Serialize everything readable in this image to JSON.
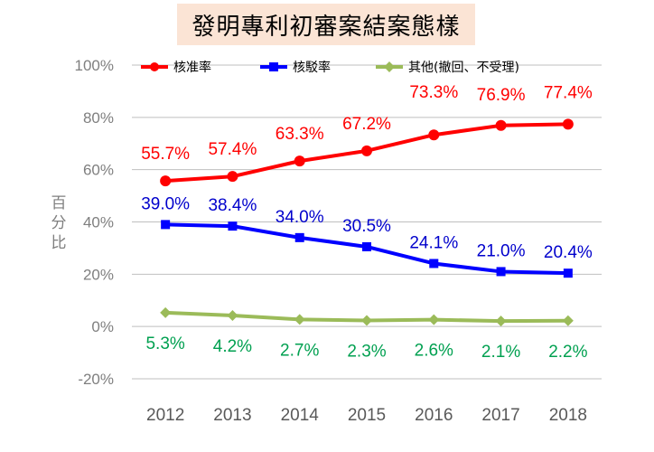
{
  "chart_data": {
    "type": "line",
    "title": "發明專利初審案結案態樣",
    "ylabel": "百\n分\n比",
    "xlabel": "",
    "categories": [
      "2012",
      "2013",
      "2014",
      "2015",
      "2016",
      "2017",
      "2018"
    ],
    "ylim": [
      -20,
      100
    ],
    "yticks": [
      -20,
      0,
      20,
      40,
      60,
      80,
      100
    ],
    "ytick_labels": [
      "-20%",
      "0%",
      "20%",
      "40%",
      "60%",
      "80%",
      "100%"
    ],
    "grid": true,
    "legend_position": "top",
    "series": [
      {
        "name": "核准率",
        "color": "#ff0000",
        "label_color": "#ff0000",
        "marker": "circle",
        "values": [
          55.7,
          57.4,
          63.3,
          67.2,
          73.3,
          76.9,
          77.4
        ],
        "labels": [
          "55.7%",
          "57.4%",
          "63.3%",
          "67.2%",
          "73.3%",
          "76.9%",
          "77.4%"
        ]
      },
      {
        "name": "核駁率",
        "color": "#0000ff",
        "label_color": "#0000cc",
        "marker": "square",
        "values": [
          39.0,
          38.4,
          34.0,
          30.5,
          24.1,
          21.0,
          20.4
        ],
        "labels": [
          "39.0%",
          "38.4%",
          "34.0%",
          "30.5%",
          "24.1%",
          "21.0%",
          "20.4%"
        ]
      },
      {
        "name": "其他(撤回、不受理)",
        "color": "#9bbb59",
        "label_color": "#00a050",
        "marker": "diamond",
        "values": [
          5.3,
          4.2,
          2.7,
          2.3,
          2.6,
          2.1,
          2.2
        ],
        "labels": [
          "5.3%",
          "4.2%",
          "2.7%",
          "2.3%",
          "2.6%",
          "2.1%",
          "2.2%"
        ]
      }
    ]
  }
}
